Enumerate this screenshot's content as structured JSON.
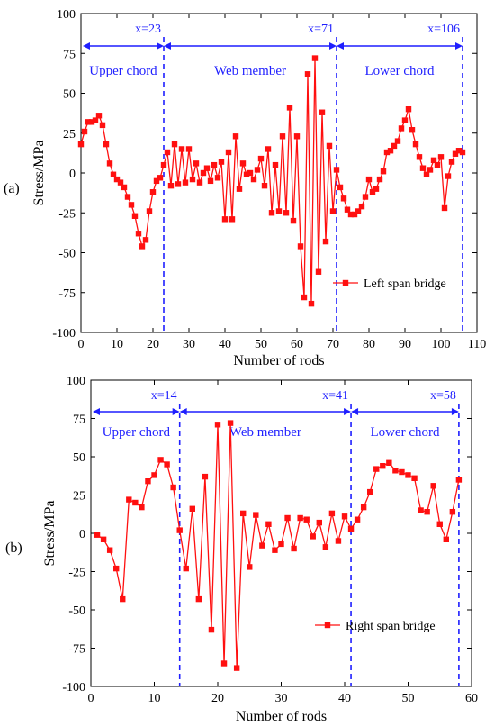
{
  "colors": {
    "series": "#ff1010",
    "annotation": "#1f1fff",
    "axis": "#000000"
  },
  "chart_data": [
    {
      "type": "line",
      "panel_tag": "(a)",
      "xlabel": "Number of rods",
      "ylabel": "Stress/MPa",
      "xlim": [
        0,
        110
      ],
      "ylim": [
        -100,
        100
      ],
      "xticks": [
        0,
        10,
        20,
        30,
        40,
        50,
        60,
        70,
        80,
        90,
        100,
        110
      ],
      "yticks": [
        -100,
        -75,
        -50,
        -25,
        0,
        25,
        50,
        75,
        100
      ],
      "legend": "top-right-inset",
      "grid": false,
      "boundaries": [
        {
          "x": 23,
          "label": "x=23"
        },
        {
          "x": 71,
          "label": "x=71"
        },
        {
          "x": 106,
          "label": "x=106"
        }
      ],
      "sections": [
        {
          "label": "Upper chord",
          "from": 0,
          "to": 23
        },
        {
          "label": "Web member",
          "from": 23,
          "to": 71
        },
        {
          "label": "Lower chord",
          "from": 71,
          "to": 106
        }
      ],
      "series": [
        {
          "name": "Left span bridge",
          "x": [
            0,
            1,
            2,
            3,
            4,
            5,
            6,
            7,
            8,
            9,
            10,
            11,
            12,
            13,
            14,
            15,
            16,
            17,
            18,
            19,
            20,
            21,
            22,
            23,
            24,
            25,
            26,
            27,
            28,
            29,
            30,
            31,
            32,
            33,
            34,
            35,
            36,
            37,
            38,
            39,
            40,
            41,
            42,
            43,
            44,
            45,
            46,
            47,
            48,
            49,
            50,
            51,
            52,
            53,
            54,
            55,
            56,
            57,
            58,
            59,
            60,
            61,
            62,
            63,
            64,
            65,
            66,
            67,
            68,
            69,
            70,
            71,
            72,
            73,
            74,
            75,
            76,
            77,
            78,
            79,
            80,
            81,
            82,
            83,
            84,
            85,
            86,
            87,
            88,
            89,
            90,
            91,
            92,
            93,
            94,
            95,
            96,
            97,
            98,
            99,
            100,
            101,
            102,
            103,
            104,
            105,
            106
          ],
          "y": [
            18,
            26,
            32,
            32,
            33,
            36,
            30,
            18,
            6,
            -1,
            -4,
            -6,
            -9,
            -15,
            -20,
            -27,
            -38,
            -46,
            -42,
            -24,
            -12,
            -5,
            -3,
            5,
            13,
            -8,
            18,
            -7,
            15,
            -6,
            15,
            -4,
            6,
            -6,
            0,
            3,
            -5,
            5,
            -3,
            7,
            -29,
            13,
            -29,
            23,
            -10,
            6,
            -1,
            0,
            -4,
            2,
            9,
            -8,
            15,
            -25,
            5,
            -24,
            23,
            -25,
            41,
            -30,
            23,
            -46,
            -78,
            62,
            -82,
            72,
            -62,
            38,
            -43,
            17,
            -24,
            2,
            -9,
            -16,
            -23,
            -26,
            -26,
            -24,
            -21,
            -15,
            -4,
            -12,
            -10,
            -4,
            1,
            13,
            14,
            17,
            20,
            28,
            33,
            40,
            27,
            18,
            10,
            3,
            -1,
            2,
            8,
            5,
            10,
            -22,
            -2,
            7,
            12,
            14,
            13
          ]
        }
      ]
    },
    {
      "type": "line",
      "panel_tag": "(b)",
      "xlabel": "Number of rods",
      "ylabel": "Stress/MPa",
      "xlim": [
        0,
        60
      ],
      "ylim": [
        -100,
        100
      ],
      "xticks": [
        0,
        10,
        20,
        30,
        40,
        50,
        60
      ],
      "yticks": [
        -100,
        -75,
        -50,
        -25,
        0,
        25,
        50,
        75,
        100
      ],
      "legend": "bottom-right-inset",
      "grid": false,
      "boundaries": [
        {
          "x": 14,
          "label": "x=14"
        },
        {
          "x": 41,
          "label": "x=41"
        },
        {
          "x": 58,
          "label": "x=58"
        }
      ],
      "sections": [
        {
          "label": "Upper chord",
          "from": 0,
          "to": 14
        },
        {
          "label": "Web member",
          "from": 14,
          "to": 41
        },
        {
          "label": "Lower chord",
          "from": 41,
          "to": 58
        }
      ],
      "series": [
        {
          "name": "Right span bridge",
          "x": [
            1,
            2,
            3,
            4,
            5,
            6,
            7,
            8,
            9,
            10,
            11,
            12,
            13,
            14,
            15,
            16,
            17,
            18,
            19,
            20,
            21,
            22,
            23,
            24,
            25,
            26,
            27,
            28,
            29,
            30,
            31,
            32,
            33,
            34,
            35,
            36,
            37,
            38,
            39,
            40,
            41,
            42,
            43,
            44,
            45,
            46,
            47,
            48,
            49,
            50,
            51,
            52,
            53,
            54,
            55,
            56,
            57,
            58
          ],
          "y": [
            -1,
            -4,
            -11,
            -23,
            -43,
            22,
            20,
            17,
            34,
            38,
            48,
            45,
            30,
            2,
            -23,
            16,
            -43,
            37,
            -63,
            71,
            -85,
            72,
            -88,
            13,
            -22,
            12,
            -8,
            6,
            -11,
            -7,
            10,
            -10,
            10,
            9,
            -2,
            7,
            -9,
            13,
            -5,
            11,
            3,
            9,
            17,
            27,
            42,
            44,
            46,
            41,
            40,
            38,
            36,
            15,
            14,
            31,
            6,
            -4,
            14,
            35
          ]
        }
      ]
    }
  ]
}
